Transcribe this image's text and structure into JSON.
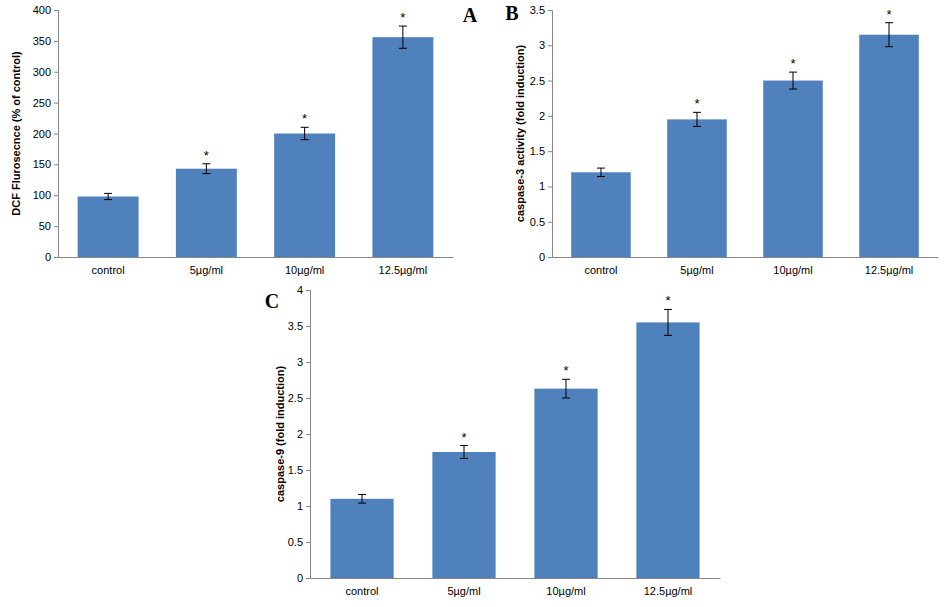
{
  "chart_data": [
    {
      "type": "bar",
      "title": "A",
      "y_label": "DCF Flurosecnce (% of control)",
      "categories": [
        "control",
        "5µg/ml",
        "10µg/ml",
        "12.5µg/ml"
      ],
      "values": [
        98,
        143,
        200,
        356
      ],
      "errors": [
        5,
        8,
        10,
        18
      ],
      "significance": [
        null,
        "*",
        "*",
        "*"
      ],
      "color": "#4f81bd",
      "ylim": [
        0,
        400
      ],
      "yticks": [
        0,
        50,
        100,
        150,
        200,
        250,
        300,
        350,
        400
      ]
    },
    {
      "type": "bar",
      "title": "B",
      "y_label": "caspase-3 activity (fold induction)",
      "categories": [
        "control",
        "5µg/ml",
        "10µg/ml",
        "12.5µg/ml"
      ],
      "values": [
        1.2,
        1.95,
        2.5,
        3.15
      ],
      "errors": [
        0.06,
        0.1,
        0.12,
        0.17
      ],
      "significance": [
        null,
        "*",
        "*",
        "*"
      ],
      "color": "#4f81bd",
      "ylim": [
        0,
        3.5
      ],
      "yticks": [
        0,
        0.5,
        1,
        1.5,
        2,
        2.5,
        3,
        3.5
      ]
    },
    {
      "type": "bar",
      "title": "C",
      "y_label": "caspase-9 (fold induction)",
      "categories": [
        "control",
        "5µg/ml",
        "10µg/ml",
        "12.5µg/ml"
      ],
      "values": [
        1.1,
        1.75,
        2.63,
        3.55
      ],
      "errors": [
        0.06,
        0.09,
        0.13,
        0.18
      ],
      "significance": [
        null,
        "*",
        "*",
        "*"
      ],
      "color": "#4f81bd",
      "ylim": [
        0,
        4
      ],
      "yticks": [
        0,
        0.5,
        1,
        1.5,
        2,
        2.5,
        3,
        3.5,
        4
      ]
    }
  ]
}
